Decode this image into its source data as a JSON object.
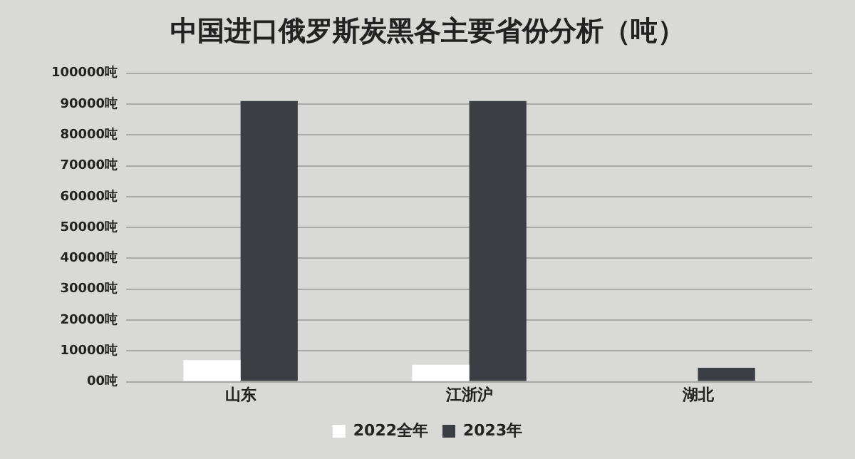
{
  "chart_data": {
    "type": "bar",
    "title": "中国进口俄罗斯炭黑各主要省份分析（吨）",
    "categories": [
      "山东",
      "江浙沪",
      "湖北"
    ],
    "series": [
      {
        "name": "2022全年",
        "color": "#ffffff",
        "values": [
          7000,
          5500,
          0
        ]
      },
      {
        "name": "2023年",
        "color": "#3b3e42",
        "values": [
          91000,
          91000,
          4500
        ]
      }
    ],
    "ylim": [
      0,
      100000
    ],
    "yticks": [
      {
        "value": 0,
        "label": "00吨"
      },
      {
        "value": 10000,
        "label": "10000吨"
      },
      {
        "value": 20000,
        "label": "20000吨"
      },
      {
        "value": 30000,
        "label": "30000吨"
      },
      {
        "value": 40000,
        "label": "40000吨"
      },
      {
        "value": 50000,
        "label": "50000吨"
      },
      {
        "value": 60000,
        "label": "60000吨"
      },
      {
        "value": 70000,
        "label": "70000吨"
      },
      {
        "value": 80000,
        "label": "80000吨"
      },
      {
        "value": 90000,
        "label": "90000吨"
      },
      {
        "value": 100000,
        "label": "100000吨"
      }
    ],
    "grid": "y",
    "legend": "bottom"
  }
}
